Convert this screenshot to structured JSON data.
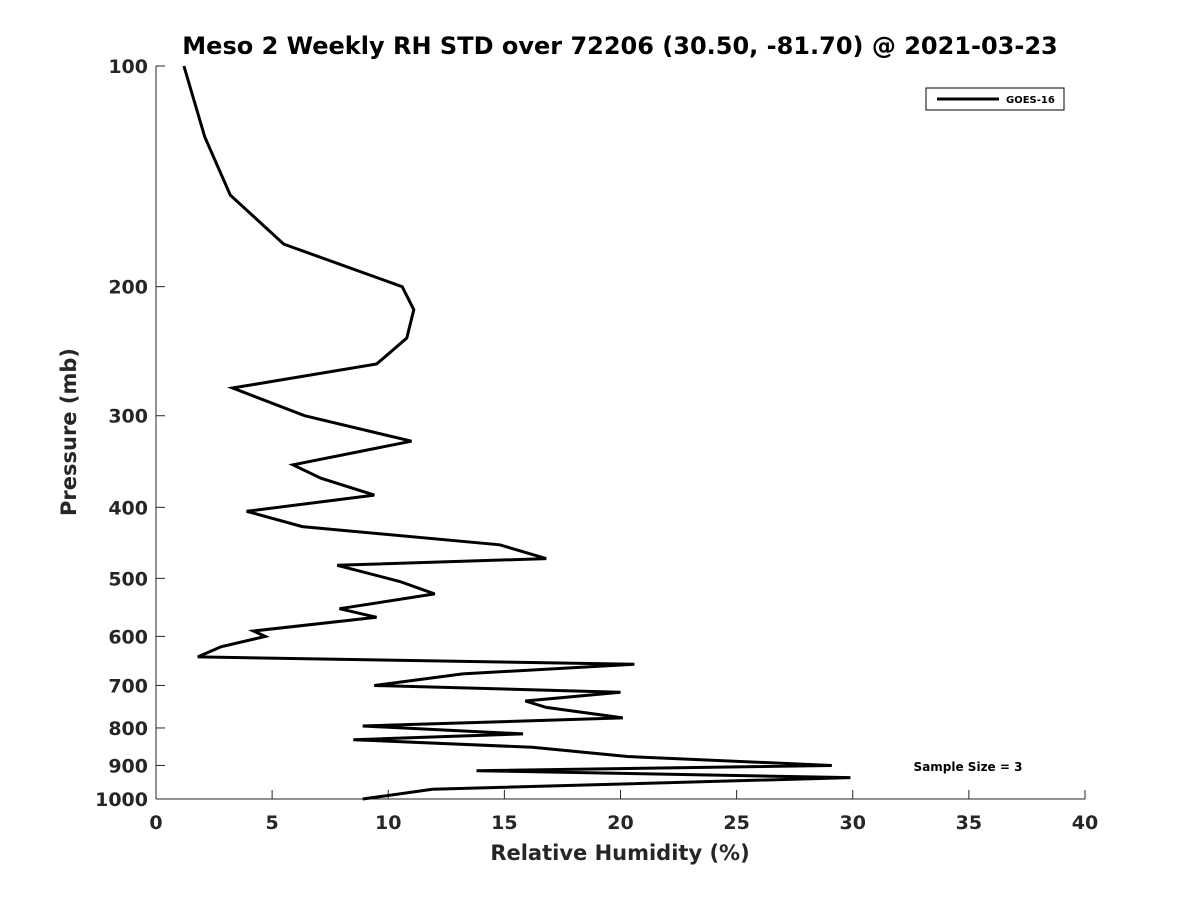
{
  "chart_data": {
    "type": "line",
    "title": "Meso 2 Weekly RH STD over 72206 (30.50, -81.70) @ 2021-03-23",
    "xlabel": "Relative Humidity (%)",
    "ylabel": "Pressure (mb)",
    "xlim": [
      0,
      40
    ],
    "ylim": [
      100,
      1000
    ],
    "y_scale": "log",
    "y_reversed": true,
    "x_ticks": [
      0,
      5,
      10,
      15,
      20,
      25,
      30,
      35,
      40
    ],
    "y_ticks": [
      100,
      200,
      300,
      400,
      500,
      600,
      700,
      800,
      900,
      1000
    ],
    "grid": false,
    "legend_position": "top-right",
    "annotation": "Sample Size = 3",
    "series": [
      {
        "name": "GOES-16",
        "color": "#000000",
        "points": [
          [
            1.2,
            100
          ],
          [
            2.1,
            125
          ],
          [
            3.2,
            150
          ],
          [
            5.5,
            175
          ],
          [
            10.6,
            200
          ],
          [
            11.1,
            215
          ],
          [
            10.8,
            235
          ],
          [
            9.5,
            255
          ],
          [
            3.3,
            275
          ],
          [
            6.4,
            300
          ],
          [
            11.0,
            325
          ],
          [
            5.9,
            350
          ],
          [
            7.1,
            365
          ],
          [
            9.4,
            385
          ],
          [
            3.9,
            405
          ],
          [
            6.3,
            425
          ],
          [
            14.8,
            450
          ],
          [
            16.8,
            470
          ],
          [
            7.8,
            480
          ],
          [
            10.5,
            505
          ],
          [
            12.0,
            525
          ],
          [
            7.9,
            550
          ],
          [
            9.5,
            565
          ],
          [
            4.2,
            590
          ],
          [
            4.7,
            600
          ],
          [
            2.8,
            620
          ],
          [
            1.8,
            640
          ],
          [
            20.6,
            655
          ],
          [
            13.2,
            675
          ],
          [
            9.4,
            700
          ],
          [
            20.0,
            715
          ],
          [
            15.9,
            735
          ],
          [
            16.8,
            750
          ],
          [
            20.1,
            775
          ],
          [
            8.9,
            795
          ],
          [
            15.8,
            815
          ],
          [
            8.5,
            830
          ],
          [
            16.2,
            850
          ],
          [
            20.3,
            875
          ],
          [
            29.1,
            900
          ],
          [
            13.8,
            915
          ],
          [
            29.9,
            935
          ],
          [
            11.9,
            970
          ],
          [
            8.9,
            1000
          ]
        ]
      }
    ]
  }
}
